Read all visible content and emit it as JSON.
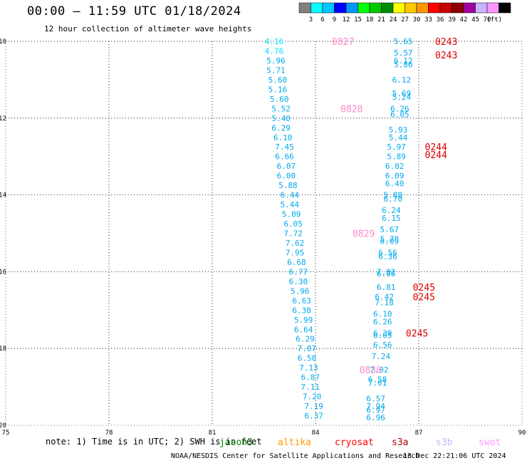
{
  "header": {
    "title": "00:00 — 11:59 UTC 01/18/2024",
    "subtitle": "12 hour collection of altimeter wave heights"
  },
  "colorbar": {
    "unit": "(ft)",
    "bins": [
      {
        "label": "",
        "color": "#808080"
      },
      {
        "label": "3",
        "color": "#00ffff"
      },
      {
        "label": "6",
        "color": "#00c8ff"
      },
      {
        "label": "9",
        "color": "#0000ff"
      },
      {
        "label": "12",
        "color": "#0096ff"
      },
      {
        "label": "15",
        "color": "#00ff00"
      },
      {
        "label": "18",
        "color": "#00c800"
      },
      {
        "label": "21",
        "color": "#008c00"
      },
      {
        "label": "24",
        "color": "#ffff00"
      },
      {
        "label": "27",
        "color": "#ffc800"
      },
      {
        "label": "30",
        "color": "#ff9600"
      },
      {
        "label": "33",
        "color": "#ff0000"
      },
      {
        "label": "36",
        "color": "#c80000"
      },
      {
        "label": "39",
        "color": "#8c0000"
      },
      {
        "label": "42",
        "color": "#a000a0"
      },
      {
        "label": "45",
        "color": "#c8b4ff"
      },
      {
        "label": "70",
        "color": "#ff96ff"
      },
      {
        "label": "",
        "color": "#000000"
      }
    ]
  },
  "colors": {
    "low_wave": "#00e0ff",
    "mid_wave": "#00aaee",
    "time_jason": "#ff88cc",
    "time_s3a": "#dd0000"
  },
  "chart_data": {
    "type": "scatter",
    "title": "00:00 — 11:59 UTC 01/18/2024",
    "subtitle": "12 hour collection of altimeter wave heights",
    "xlabel": "",
    "ylabel": "",
    "xlim": [
      75,
      90
    ],
    "ylim": [
      -20,
      -10
    ],
    "x_ticks": [
      "75",
      "78",
      "81",
      "84",
      "87",
      "90"
    ],
    "y_ticks": [
      "-10",
      "-12",
      "-14",
      "-16",
      "-18",
      "-20"
    ],
    "x_tick_values": [
      75,
      78,
      81,
      84,
      87,
      90
    ],
    "y_tick_values": [
      -10,
      -12,
      -14,
      -16,
      -18,
      -20
    ],
    "grid": true,
    "series": [
      {
        "name": "jason3",
        "points": [
          {
            "x": 82.8,
            "y": -10.0,
            "v": "4.16",
            "c": 1
          },
          {
            "x": 82.8,
            "y": -10.25,
            "v": "4.76",
            "c": 1
          },
          {
            "x": 82.85,
            "y": -10.5,
            "v": "5.96",
            "c": 2
          },
          {
            "x": 82.85,
            "y": -10.75,
            "v": "5.71",
            "c": 2
          },
          {
            "x": 82.9,
            "y": -11.0,
            "v": "5.60",
            "c": 2
          },
          {
            "x": 82.9,
            "y": -11.25,
            "v": "5.16",
            "c": 2
          },
          {
            "x": 82.95,
            "y": -11.5,
            "v": "5.60",
            "c": 2
          },
          {
            "x": 83.0,
            "y": -11.75,
            "v": "5.52",
            "c": 2
          },
          {
            "x": 83.0,
            "y": -12.0,
            "v": "5.40",
            "c": 2
          },
          {
            "x": 83.0,
            "y": -12.25,
            "v": "6.29",
            "c": 2
          },
          {
            "x": 83.05,
            "y": -12.5,
            "v": "6.10",
            "c": 2
          },
          {
            "x": 83.1,
            "y": -12.75,
            "v": "7.45",
            "c": 2
          },
          {
            "x": 83.1,
            "y": -13.0,
            "v": "6.66",
            "c": 2
          },
          {
            "x": 83.15,
            "y": -13.25,
            "v": "6.07",
            "c": 2
          },
          {
            "x": 83.15,
            "y": -13.5,
            "v": "6.00",
            "c": 2
          },
          {
            "x": 83.2,
            "y": -13.75,
            "v": "5.88",
            "c": 2
          },
          {
            "x": 83.25,
            "y": -14.0,
            "v": "6.44",
            "c": 2
          },
          {
            "x": 83.25,
            "y": -14.25,
            "v": "5.44",
            "c": 2
          },
          {
            "x": 83.3,
            "y": -14.5,
            "v": "5.09",
            "c": 2
          },
          {
            "x": 83.35,
            "y": -14.75,
            "v": "6.05",
            "c": 2
          },
          {
            "x": 83.35,
            "y": -15.0,
            "v": "7.72",
            "c": 2
          },
          {
            "x": 83.4,
            "y": -15.25,
            "v": "7.62",
            "c": 2
          },
          {
            "x": 83.4,
            "y": -15.5,
            "v": "7.95",
            "c": 2
          },
          {
            "x": 83.45,
            "y": -15.75,
            "v": "6.68",
            "c": 2
          },
          {
            "x": 83.5,
            "y": -16.0,
            "v": "6.77",
            "c": 2
          },
          {
            "x": 83.5,
            "y": -16.25,
            "v": "6.30",
            "c": 2
          },
          {
            "x": 83.55,
            "y": -16.5,
            "v": "5.96",
            "c": 2
          },
          {
            "x": 83.6,
            "y": -16.75,
            "v": "6.63",
            "c": 2
          },
          {
            "x": 83.6,
            "y": -17.0,
            "v": "6.38",
            "c": 2
          },
          {
            "x": 83.65,
            "y": -17.25,
            "v": "5.99",
            "c": 2
          },
          {
            "x": 83.65,
            "y": -17.5,
            "v": "6.64",
            "c": 2
          },
          {
            "x": 83.7,
            "y": -17.75,
            "v": "6.29",
            "c": 2
          },
          {
            "x": 83.75,
            "y": -18.0,
            "v": "7.07",
            "c": 2
          },
          {
            "x": 83.75,
            "y": -18.25,
            "v": "6.50",
            "c": 2
          },
          {
            "x": 83.8,
            "y": -18.5,
            "v": "7.13",
            "c": 2
          },
          {
            "x": 83.85,
            "y": -18.75,
            "v": "6.87",
            "c": 2
          },
          {
            "x": 83.85,
            "y": -19.0,
            "v": "7.11",
            "c": 2
          },
          {
            "x": 83.9,
            "y": -19.25,
            "v": "7.20",
            "c": 2
          },
          {
            "x": 83.95,
            "y": -19.5,
            "v": "7.19",
            "c": 2
          },
          {
            "x": 83.95,
            "y": -19.75,
            "v": "6.37",
            "c": 2
          }
        ]
      },
      {
        "name": "s3a",
        "points": [
          {
            "x": 86.55,
            "y": -10.0,
            "v": "5.65",
            "c": 2
          },
          {
            "x": 86.55,
            "y": -10.3,
            "v": "5.57",
            "c": 2
          },
          {
            "x": 86.55,
            "y": -10.5,
            "v": "6.12",
            "c": 2
          },
          {
            "x": 86.55,
            "y": -10.6,
            "v": "5.86",
            "c": 2
          },
          {
            "x": 86.5,
            "y": -11.0,
            "v": "6.12",
            "c": 2
          },
          {
            "x": 86.5,
            "y": -11.35,
            "v": "5.69",
            "c": 2
          },
          {
            "x": 86.5,
            "y": -11.45,
            "v": "5.24",
            "c": 2
          },
          {
            "x": 86.45,
            "y": -11.75,
            "v": "6.26",
            "c": 2
          },
          {
            "x": 86.45,
            "y": -11.9,
            "v": "6.05",
            "c": 2
          },
          {
            "x": 86.4,
            "y": -12.3,
            "v": "5.93",
            "c": 2
          },
          {
            "x": 86.4,
            "y": -12.5,
            "v": "5.44",
            "c": 2
          },
          {
            "x": 86.35,
            "y": -12.75,
            "v": "5.97",
            "c": 2
          },
          {
            "x": 86.35,
            "y": -13.0,
            "v": "5.89",
            "c": 2
          },
          {
            "x": 86.3,
            "y": -13.25,
            "v": "6.02",
            "c": 2
          },
          {
            "x": 86.3,
            "y": -13.5,
            "v": "6.09",
            "c": 2
          },
          {
            "x": 86.3,
            "y": -13.7,
            "v": "6.40",
            "c": 2
          },
          {
            "x": 86.25,
            "y": -14.0,
            "v": "5.88",
            "c": 2
          },
          {
            "x": 86.25,
            "y": -14.1,
            "v": "6.70",
            "c": 2
          },
          {
            "x": 86.2,
            "y": -14.4,
            "v": "6.24",
            "c": 2
          },
          {
            "x": 86.2,
            "y": -14.6,
            "v": "6.15",
            "c": 2
          },
          {
            "x": 86.15,
            "y": -14.9,
            "v": "5.67",
            "c": 2
          },
          {
            "x": 86.15,
            "y": -15.15,
            "v": "5.78",
            "c": 2
          },
          {
            "x": 86.15,
            "y": -15.2,
            "v": "6.09",
            "c": 2
          },
          {
            "x": 86.1,
            "y": -15.5,
            "v": "6.56",
            "c": 2
          },
          {
            "x": 86.1,
            "y": -15.6,
            "v": "6.36",
            "c": 2
          },
          {
            "x": 86.05,
            "y": -16.0,
            "v": "7.02",
            "c": 2
          },
          {
            "x": 86.05,
            "y": -16.05,
            "v": "6.06",
            "c": 2
          },
          {
            "x": 86.05,
            "y": -16.4,
            "v": "6.81",
            "c": 2
          },
          {
            "x": 86.0,
            "y": -16.65,
            "v": "6.42",
            "c": 2
          },
          {
            "x": 86.0,
            "y": -16.8,
            "v": "7.18",
            "c": 2
          },
          {
            "x": 85.95,
            "y": -17.1,
            "v": "6.10",
            "c": 2
          },
          {
            "x": 85.95,
            "y": -17.3,
            "v": "6.26",
            "c": 2
          },
          {
            "x": 85.95,
            "y": -17.6,
            "v": "6.39",
            "c": 2
          },
          {
            "x": 85.95,
            "y": -17.65,
            "v": "6.05",
            "c": 2
          },
          {
            "x": 85.95,
            "y": -17.9,
            "v": "6.56",
            "c": 2
          },
          {
            "x": 85.9,
            "y": -18.2,
            "v": "7.24",
            "c": 2
          },
          {
            "x": 85.85,
            "y": -18.55,
            "v": "7.02",
            "c": 2
          },
          {
            "x": 85.8,
            "y": -18.8,
            "v": "6.58",
            "c": 2
          },
          {
            "x": 85.8,
            "y": -18.9,
            "v": "7.01",
            "c": 2
          },
          {
            "x": 85.75,
            "y": -19.3,
            "v": "6.57",
            "c": 2
          },
          {
            "x": 85.75,
            "y": -19.5,
            "v": "7.94",
            "c": 2
          },
          {
            "x": 85.75,
            "y": -19.6,
            "v": "6.97",
            "c": 2
          },
          {
            "x": 85.75,
            "y": -19.8,
            "v": "6.96",
            "c": 2
          }
        ]
      }
    ],
    "time_labels": [
      {
        "text": "0827",
        "x": 84.8,
        "y": -10.0,
        "sat": "jason3"
      },
      {
        "text": "0828",
        "x": 85.05,
        "y": -11.75,
        "sat": "jason3"
      },
      {
        "text": "0829",
        "x": 85.4,
        "y": -15.0,
        "sat": "jason3"
      },
      {
        "text": "0830",
        "x": 85.6,
        "y": -18.55,
        "sat": "jason3"
      },
      {
        "text": "0243",
        "x": 87.8,
        "y": -10.0,
        "sat": "s3a"
      },
      {
        "text": "0243",
        "x": 87.8,
        "y": -10.35,
        "sat": "s3a"
      },
      {
        "text": "0244",
        "x": 87.5,
        "y": -12.75,
        "sat": "s3a"
      },
      {
        "text": "0244",
        "x": 87.5,
        "y": -12.95,
        "sat": "s3a"
      },
      {
        "text": "0245",
        "x": 87.15,
        "y": -16.4,
        "sat": "s3a"
      },
      {
        "text": "0245",
        "x": 87.15,
        "y": -16.65,
        "sat": "s3a"
      },
      {
        "text": "0245",
        "x": 86.95,
        "y": -17.6,
        "sat": "s3a"
      }
    ]
  },
  "legend": {
    "items": [
      {
        "label": "jason3",
        "color": "#008800"
      },
      {
        "label": "altika",
        "color": "#ff9900"
      },
      {
        "label": "cryosat",
        "color": "#ff0000"
      },
      {
        "label": "s3a",
        "color": "#aa0000"
      },
      {
        "label": "s3b",
        "color": "#c8b4ff"
      },
      {
        "label": "swot",
        "color": "#ff96ff"
      }
    ]
  },
  "footer": {
    "note": "note: 1) Time is in UTC; 2) SWH is in feet",
    "source": "NOAA/NESDIS Center for Satellite Applications and Research",
    "timestamp": "13 Dec 22:21:06 UTC 2024"
  }
}
